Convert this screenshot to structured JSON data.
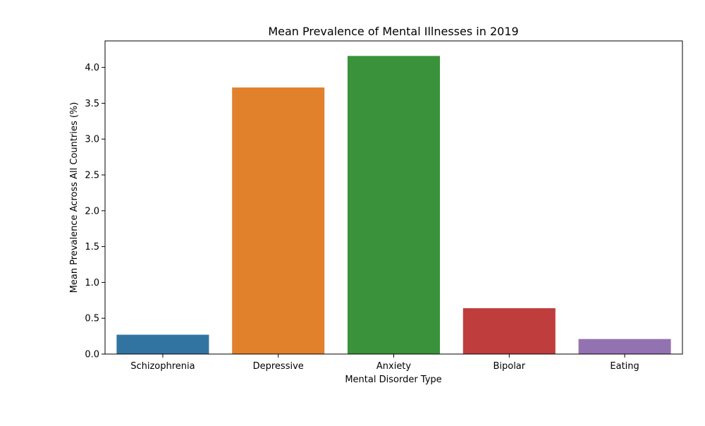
{
  "chart_data": {
    "type": "bar",
    "title": "Mean Prevalence of Mental Illnesses in 2019",
    "xlabel": "Mental Disorder Type",
    "ylabel": "Mean Prevalence Across All Countries (%)",
    "categories": [
      "Schizophrenia",
      "Depressive",
      "Anxiety",
      "Bipolar",
      "Eating"
    ],
    "values": [
      0.27,
      3.72,
      4.16,
      0.64,
      0.21
    ],
    "colors": [
      "#3274a1",
      "#e1812c",
      "#3a923a",
      "#c03d3e",
      "#9372b2"
    ],
    "ylim": [
      0,
      4.37
    ],
    "yticks": [
      0.0,
      0.5,
      1.0,
      1.5,
      2.0,
      2.5,
      3.0,
      3.5,
      4.0
    ],
    "ytick_labels": [
      "0.0",
      "0.5",
      "1.0",
      "1.5",
      "2.0",
      "2.5",
      "3.0",
      "3.5",
      "4.0"
    ],
    "grid": false,
    "legend": "none"
  }
}
